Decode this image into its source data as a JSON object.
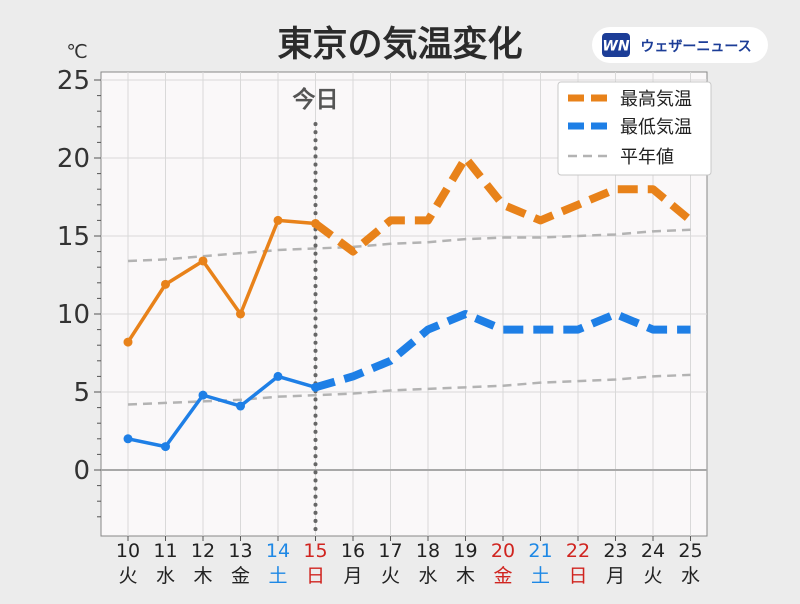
{
  "header": {
    "title": "東京の気温変化",
    "brand_badge": "WN",
    "brand_name": "ウェザーニュース"
  },
  "chart_data": {
    "type": "line",
    "title": "東京の気温変化",
    "ylabel": "℃",
    "ylim": [
      -4,
      25.5
    ],
    "yticks": [
      0,
      5,
      10,
      15,
      20,
      25
    ],
    "grid": true,
    "legend_position": "top-right",
    "today_marker": {
      "label": "今日",
      "date": "15"
    },
    "categories": [
      {
        "date": "10",
        "weekday": "火",
        "kind": "weekday"
      },
      {
        "date": "11",
        "weekday": "水",
        "kind": "weekday"
      },
      {
        "date": "12",
        "weekday": "木",
        "kind": "weekday"
      },
      {
        "date": "13",
        "weekday": "金",
        "kind": "weekday"
      },
      {
        "date": "14",
        "weekday": "土",
        "kind": "saturday"
      },
      {
        "date": "15",
        "weekday": "日",
        "kind": "holiday"
      },
      {
        "date": "16",
        "weekday": "月",
        "kind": "weekday"
      },
      {
        "date": "17",
        "weekday": "火",
        "kind": "weekday"
      },
      {
        "date": "18",
        "weekday": "水",
        "kind": "weekday"
      },
      {
        "date": "19",
        "weekday": "木",
        "kind": "weekday"
      },
      {
        "date": "20",
        "weekday": "金",
        "kind": "holiday"
      },
      {
        "date": "21",
        "weekday": "土",
        "kind": "saturday"
      },
      {
        "date": "22",
        "weekday": "日",
        "kind": "holiday"
      },
      {
        "date": "23",
        "weekday": "月",
        "kind": "weekday"
      },
      {
        "date": "24",
        "weekday": "火",
        "kind": "weekday"
      },
      {
        "date": "25",
        "weekday": "水",
        "kind": "weekday"
      }
    ],
    "series": [
      {
        "name": "最高気温",
        "color": "#e8821a",
        "observed": [
          8.2,
          11.9,
          13.4,
          10.0,
          16.0,
          15.8
        ],
        "forecast": [
          15.8,
          14.0,
          16.0,
          16.0,
          20.0,
          17.0,
          16.0,
          17.0,
          18.0,
          18.0,
          16.0
        ]
      },
      {
        "name": "最低気温",
        "color": "#1e7fe6",
        "observed": [
          2.0,
          1.5,
          4.8,
          4.1,
          6.0,
          5.3
        ],
        "forecast": [
          5.3,
          6.0,
          7.0,
          9.0,
          10.0,
          9.0,
          9.0,
          9.0,
          10.0,
          9.0,
          9.0
        ]
      },
      {
        "name": "平年値",
        "color": "#b3b3b3",
        "normal_high": [
          13.4,
          13.5,
          13.7,
          13.9,
          14.1,
          14.2,
          14.3,
          14.5,
          14.6,
          14.8,
          14.9,
          14.9,
          15.0,
          15.1,
          15.3,
          15.4
        ],
        "normal_low": [
          4.2,
          4.3,
          4.4,
          4.5,
          4.7,
          4.8,
          4.9,
          5.1,
          5.2,
          5.3,
          5.4,
          5.6,
          5.7,
          5.8,
          6.0,
          6.1
        ]
      }
    ],
    "colors": {
      "weekday_label": "#222222",
      "saturday_label": "#1e88e5",
      "holiday_label": "#d0241f",
      "today_line": "#666666",
      "zero_line": "#a8a8a8",
      "grid": "#d9d9d9",
      "plot_bg": "#faf8f9",
      "page_bg": "#ececec"
    }
  }
}
